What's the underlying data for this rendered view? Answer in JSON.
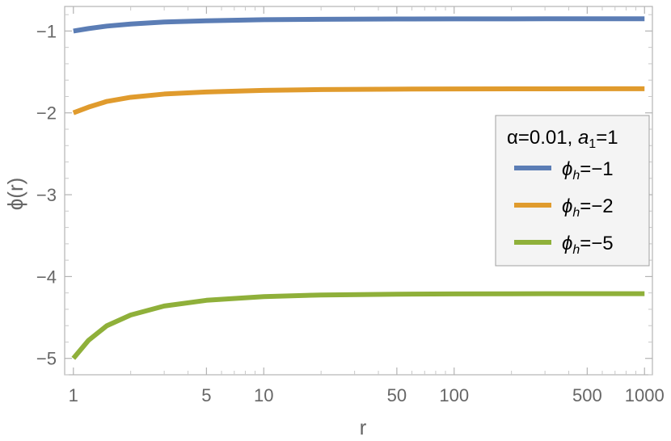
{
  "chart_data": {
    "type": "line",
    "xlabel": "r",
    "ylabel": "ϕ(r)",
    "xscale": "log",
    "xlim": [
      0.9,
      1100
    ],
    "ylim": [
      -5.2,
      -0.7
    ],
    "xticks": [
      {
        "value": 1,
        "label": "1"
      },
      {
        "value": 5,
        "label": "5"
      },
      {
        "value": 10,
        "label": "10"
      },
      {
        "value": 50,
        "label": "50"
      },
      {
        "value": 100,
        "label": "100"
      },
      {
        "value": 500,
        "label": "500"
      },
      {
        "value": 1000,
        "label": "1000"
      }
    ],
    "yticks": [
      {
        "value": -1,
        "label": "−1"
      },
      {
        "value": -2,
        "label": "−2"
      },
      {
        "value": -3,
        "label": "−3"
      },
      {
        "value": -4,
        "label": "−4"
      },
      {
        "value": -5,
        "label": "−5"
      }
    ],
    "grid": false,
    "legend": {
      "placement": "right",
      "title_alpha": "α=0.01, ",
      "title_a": "a",
      "title_sub": "1",
      "title_val": "=1"
    },
    "series": [
      {
        "label_main": "ϕ",
        "label_sub": "h",
        "label_val": "=−1",
        "color": "#5b7db5",
        "x": [
          1,
          1.2,
          1.5,
          2,
          3,
          5,
          10,
          20,
          50,
          100,
          300,
          1000
        ],
        "y": [
          -1.0,
          -0.97,
          -0.94,
          -0.915,
          -0.89,
          -0.875,
          -0.862,
          -0.857,
          -0.853,
          -0.852,
          -0.851,
          -0.85
        ]
      },
      {
        "label_main": "ϕ",
        "label_sub": "h",
        "label_val": "=−2",
        "color": "#e09b2d",
        "x": [
          1,
          1.2,
          1.5,
          2,
          3,
          5,
          10,
          20,
          50,
          100,
          300,
          1000
        ],
        "y": [
          -2.0,
          -1.93,
          -1.86,
          -1.81,
          -1.77,
          -1.745,
          -1.725,
          -1.715,
          -1.71,
          -1.708,
          -1.706,
          -1.705
        ]
      },
      {
        "label_main": "ϕ",
        "label_sub": "h",
        "label_val": "=−5",
        "color": "#8fb03a",
        "x": [
          1,
          1.2,
          1.5,
          2,
          3,
          5,
          10,
          20,
          50,
          100,
          300,
          1000
        ],
        "y": [
          -5.0,
          -4.78,
          -4.6,
          -4.47,
          -4.36,
          -4.29,
          -4.245,
          -4.225,
          -4.215,
          -4.212,
          -4.21,
          -4.21
        ]
      }
    ]
  }
}
